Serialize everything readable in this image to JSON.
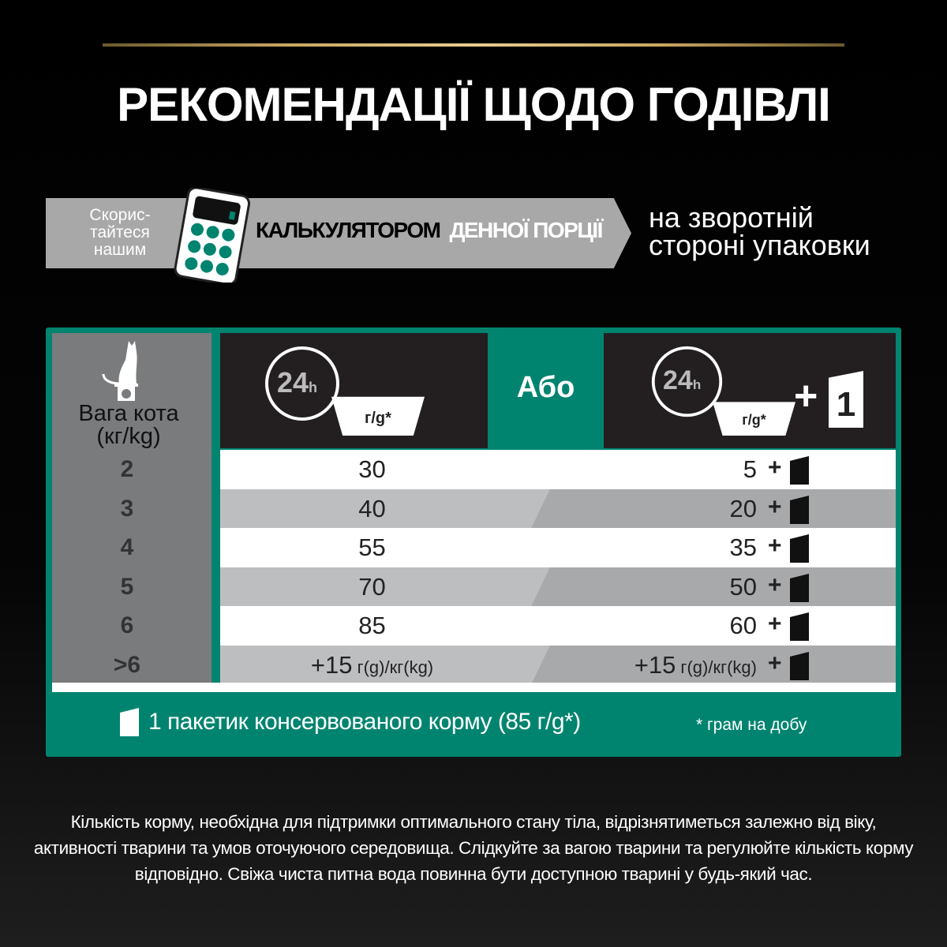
{
  "title": "РЕКОМЕНДАЦІЇ ЩОДО ГОДІВЛІ",
  "banner": {
    "use": "Скорис-\nтайтеся\nнашим",
    "calculator": "КАЛЬКУЛЯТОРОМ",
    "daily": "ДЕННОЇ ПОРЦІЇ",
    "back_line1": "на зворотній",
    "back_line2": "стороні упаковки"
  },
  "colors": {
    "teal": "#00846f",
    "gold": "#c9a862",
    "gray": "#a8a8a8",
    "dark": "#231f20"
  },
  "table": {
    "weight_label_1": "Вага кота",
    "weight_label_2": "(кг/kg)",
    "clock_label": "24",
    "clock_unit": "h",
    "bowl_label": "г/g*",
    "or": "Або",
    "plus": "+",
    "pouch_count": "1",
    "rows": [
      {
        "weight": "2",
        "dry": "30",
        "combo": "5"
      },
      {
        "weight": "3",
        "dry": "40",
        "combo": "20"
      },
      {
        "weight": "4",
        "dry": "55",
        "combo": "35"
      },
      {
        "weight": "5",
        "dry": "70",
        "combo": "50"
      },
      {
        "weight": "6",
        "dry": "85",
        "combo": "60"
      },
      {
        "weight": ">6",
        "dry": "+15",
        "dry_unit": " г(g)/кг(kg)",
        "combo": "+15",
        "combo_unit": " г(g)/кг(kg)"
      }
    ]
  },
  "footer": {
    "pouch_text": "1 пакетик консервованого корму (85 г/g*)",
    "note": "* грам на добу"
  },
  "paragraph": "Кількість корму, необхідна для підтримки оптимального стану тіла, відрізнятиметься залежно від віку, активності тварини та умов оточуючого середовища. Слідкуйте за вагою тварини та регулюйте кількість корму відповідно. Свіжа чиста питна вода повинна бути доступною тварині у будь-який час."
}
